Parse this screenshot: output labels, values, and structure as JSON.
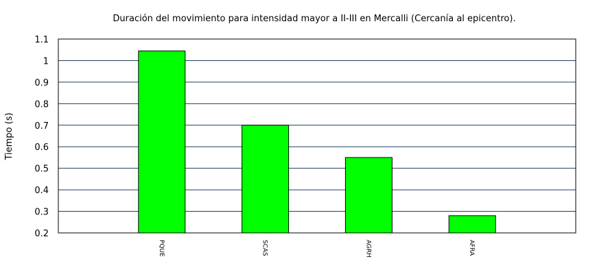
{
  "chart_data": {
    "type": "bar",
    "title": "Duración del movimiento para intensidad mayor a II-III en Mercalli (Cercanía al epicentro).",
    "xlabel": "",
    "ylabel": "Tiempo (s)",
    "categories": [
      "PQUE",
      "SCAS",
      "AGRH",
      "AFRA"
    ],
    "values": [
      1.045,
      0.7,
      0.55,
      0.28
    ],
    "ylim": [
      0.2,
      1.1
    ],
    "yticks": [
      "0.2",
      "0.3",
      "0.4",
      "0.5",
      "0.6",
      "0.7",
      "0.8",
      "0.9",
      "1",
      "1.1"
    ],
    "grid": "horizontal",
    "legend": "none",
    "colors": {
      "bar": "#00ff00",
      "bar_stroke": "#000000",
      "grid": "#1f3f5f",
      "frame": "#000000"
    }
  }
}
